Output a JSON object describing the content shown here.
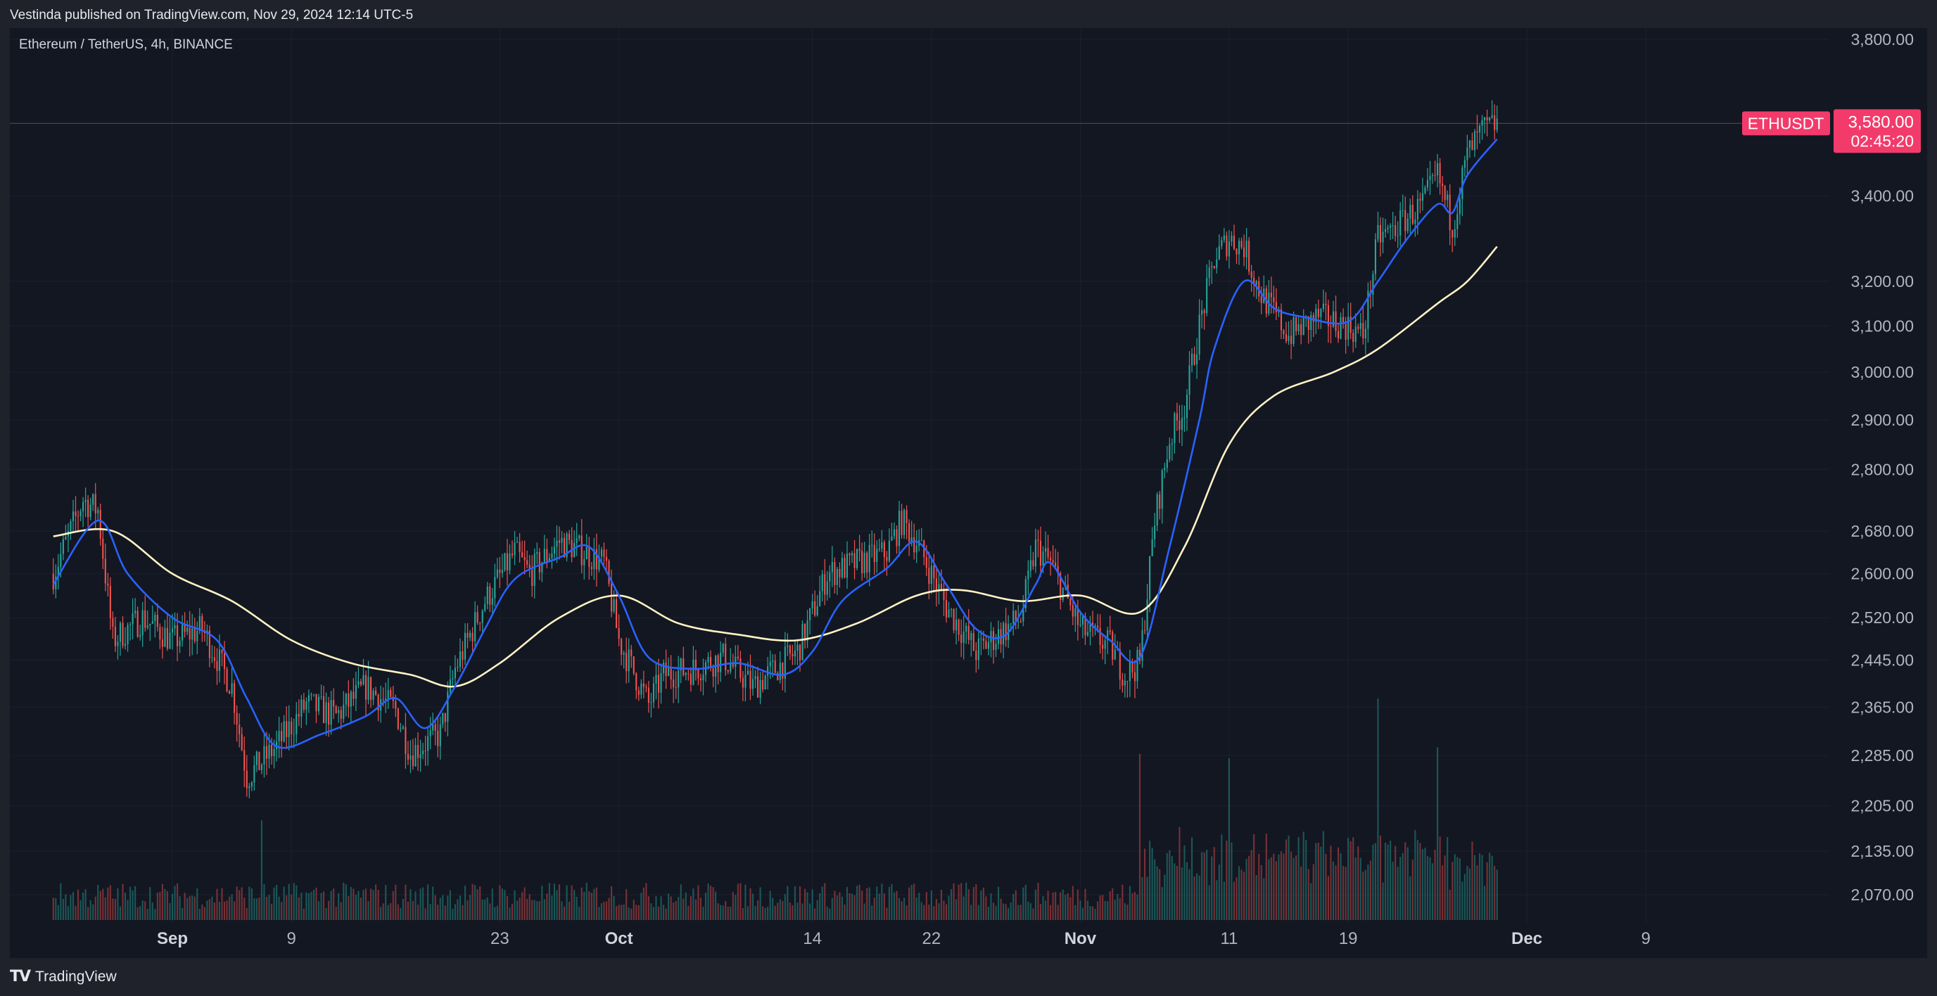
{
  "header": {
    "published_line": "Vestinda published on TradingView.com, Nov 29, 2024 12:14 UTC-5"
  },
  "symbol": {
    "description": "Ethereum / TetherUS, 4h, BINANCE"
  },
  "footer": {
    "brand": "TradingView",
    "logo_icon": "tradingview-logo-icon"
  },
  "colors": {
    "background": "#131722",
    "frame": "#1f222b",
    "up_candle": "#26a69a",
    "down_candle": "#ef5350",
    "ema_fast": "#2962ff",
    "ema_slow": "#fff3c4",
    "price_tag": "#f23b6b"
  },
  "chart_data": {
    "type": "candlestick",
    "symbol": "ETHUSDT",
    "timeframe": "4h",
    "exchange": "BINANCE",
    "x_range": [
      "2024-08-24",
      "2024-12-12"
    ],
    "last_candle_date": "2024-11-29",
    "y_scale": "log",
    "ylim": [
      2030,
      3850
    ],
    "y_ticks": [
      3800,
      3400,
      3200,
      3100,
      3000,
      2900,
      2800,
      2680,
      2600,
      2520,
      2445,
      2365,
      2285,
      2205,
      2135,
      2070
    ],
    "y_tick_labels": [
      "3,800.00",
      "3,400.00",
      "3,200.00",
      "3,100.00",
      "3,000.00",
      "2,900.00",
      "2,800.00",
      "2,680.00",
      "2,600.00",
      "2,520.00",
      "2,445.00",
      "2,365.00",
      "2,285.00",
      "2,205.00",
      "2,135.00",
      "2,070.00"
    ],
    "x_ticks": [
      {
        "date": "2024-09-01",
        "label": "Sep",
        "bold": true
      },
      {
        "date": "2024-09-09",
        "label": "9",
        "bold": false
      },
      {
        "date": "2024-09-23",
        "label": "23",
        "bold": false
      },
      {
        "date": "2024-10-01",
        "label": "Oct",
        "bold": true
      },
      {
        "date": "2024-10-14",
        "label": "14",
        "bold": false
      },
      {
        "date": "2024-10-22",
        "label": "22",
        "bold": false
      },
      {
        "date": "2024-11-01",
        "label": "Nov",
        "bold": true
      },
      {
        "date": "2024-11-11",
        "label": "11",
        "bold": false
      },
      {
        "date": "2024-11-19",
        "label": "19",
        "bold": false
      },
      {
        "date": "2024-12-01",
        "label": "Dec",
        "bold": true
      },
      {
        "date": "2024-12-09",
        "label": "9",
        "bold": false
      }
    ],
    "close_path": [
      [
        "2024-08-24",
        2600
      ],
      [
        "2024-08-26",
        2740
      ],
      [
        "2024-08-27",
        2720
      ],
      [
        "2024-08-28",
        2480
      ],
      [
        "2024-08-30",
        2520
      ],
      [
        "2024-09-01",
        2480
      ],
      [
        "2024-09-03",
        2500
      ],
      [
        "2024-09-05",
        2400
      ],
      [
        "2024-09-06",
        2250
      ],
      [
        "2024-09-08",
        2300
      ],
      [
        "2024-09-10",
        2370
      ],
      [
        "2024-09-12",
        2350
      ],
      [
        "2024-09-14",
        2400
      ],
      [
        "2024-09-16",
        2360
      ],
      [
        "2024-09-17",
        2290
      ],
      [
        "2024-09-19",
        2320
      ],
      [
        "2024-09-20",
        2430
      ],
      [
        "2024-09-22",
        2550
      ],
      [
        "2024-09-24",
        2640
      ],
      [
        "2024-09-25",
        2600
      ],
      [
        "2024-09-27",
        2660
      ],
      [
        "2024-09-28",
        2650
      ],
      [
        "2024-09-30",
        2620
      ],
      [
        "2024-10-01",
        2480
      ],
      [
        "2024-10-03",
        2370
      ],
      [
        "2024-10-04",
        2420
      ],
      [
        "2024-10-06",
        2430
      ],
      [
        "2024-10-08",
        2450
      ],
      [
        "2024-10-10",
        2400
      ],
      [
        "2024-10-11",
        2420
      ],
      [
        "2024-10-13",
        2460
      ],
      [
        "2024-10-15",
        2600
      ],
      [
        "2024-10-17",
        2620
      ],
      [
        "2024-10-19",
        2640
      ],
      [
        "2024-10-20",
        2700
      ],
      [
        "2024-10-21",
        2660
      ],
      [
        "2024-10-23",
        2540
      ],
      [
        "2024-10-25",
        2460
      ],
      [
        "2024-10-26",
        2480
      ],
      [
        "2024-10-28",
        2520
      ],
      [
        "2024-10-29",
        2650
      ],
      [
        "2024-10-30",
        2620
      ],
      [
        "2024-11-01",
        2500
      ],
      [
        "2024-11-03",
        2470
      ],
      [
        "2024-11-04",
        2420
      ],
      [
        "2024-11-05",
        2440
      ],
      [
        "2024-11-06",
        2700
      ],
      [
        "2024-11-07",
        2860
      ],
      [
        "2024-11-08",
        2930
      ],
      [
        "2024-11-09",
        3100
      ],
      [
        "2024-11-10",
        3250
      ],
      [
        "2024-11-11",
        3300
      ],
      [
        "2024-11-12",
        3280
      ],
      [
        "2024-11-13",
        3180
      ],
      [
        "2024-11-15",
        3080
      ],
      [
        "2024-11-17",
        3120
      ],
      [
        "2024-11-19",
        3100
      ],
      [
        "2024-11-20",
        3080
      ],
      [
        "2024-11-21",
        3300
      ],
      [
        "2024-11-22",
        3320
      ],
      [
        "2024-11-23",
        3350
      ],
      [
        "2024-11-24",
        3380
      ],
      [
        "2024-11-25",
        3450
      ],
      [
        "2024-11-26",
        3330
      ],
      [
        "2024-11-27",
        3500
      ],
      [
        "2024-11-28",
        3560
      ],
      [
        "2024-11-29",
        3580
      ]
    ],
    "ema_fast": {
      "color": "#2962ff",
      "points": [
        [
          "2024-08-24",
          2580
        ],
        [
          "2024-08-27",
          2700
        ],
        [
          "2024-08-29",
          2600
        ],
        [
          "2024-09-01",
          2520
        ],
        [
          "2024-09-04",
          2480
        ],
        [
          "2024-09-06",
          2380
        ],
        [
          "2024-09-08",
          2300
        ],
        [
          "2024-09-11",
          2320
        ],
        [
          "2024-09-14",
          2350
        ],
        [
          "2024-09-16",
          2380
        ],
        [
          "2024-09-18",
          2330
        ],
        [
          "2024-09-20",
          2400
        ],
        [
          "2024-09-22",
          2500
        ],
        [
          "2024-09-24",
          2590
        ],
        [
          "2024-09-27",
          2630
        ],
        [
          "2024-09-29",
          2650
        ],
        [
          "2024-10-01",
          2560
        ],
        [
          "2024-10-03",
          2450
        ],
        [
          "2024-10-06",
          2430
        ],
        [
          "2024-10-09",
          2440
        ],
        [
          "2024-10-12",
          2420
        ],
        [
          "2024-10-14",
          2460
        ],
        [
          "2024-10-16",
          2550
        ],
        [
          "2024-10-19",
          2610
        ],
        [
          "2024-10-21",
          2660
        ],
        [
          "2024-10-23",
          2580
        ],
        [
          "2024-10-25",
          2500
        ],
        [
          "2024-10-27",
          2490
        ],
        [
          "2024-10-29",
          2580
        ],
        [
          "2024-10-30",
          2620
        ],
        [
          "2024-11-01",
          2530
        ],
        [
          "2024-11-03",
          2480
        ],
        [
          "2024-11-05",
          2450
        ],
        [
          "2024-11-07",
          2650
        ],
        [
          "2024-11-09",
          2900
        ],
        [
          "2024-11-10",
          3050
        ],
        [
          "2024-11-12",
          3200
        ],
        [
          "2024-11-14",
          3140
        ],
        [
          "2024-11-16",
          3120
        ],
        [
          "2024-11-19",
          3110
        ],
        [
          "2024-11-21",
          3200
        ],
        [
          "2024-11-23",
          3300
        ],
        [
          "2024-11-25",
          3380
        ],
        [
          "2024-11-26",
          3360
        ],
        [
          "2024-11-27",
          3450
        ],
        [
          "2024-11-29",
          3540
        ]
      ]
    },
    "ema_slow": {
      "color": "#fff3c4",
      "points": [
        [
          "2024-08-24",
          2670
        ],
        [
          "2024-08-28",
          2680
        ],
        [
          "2024-09-01",
          2600
        ],
        [
          "2024-09-05",
          2550
        ],
        [
          "2024-09-09",
          2480
        ],
        [
          "2024-09-13",
          2440
        ],
        [
          "2024-09-17",
          2420
        ],
        [
          "2024-09-20",
          2400
        ],
        [
          "2024-09-23",
          2440
        ],
        [
          "2024-09-27",
          2520
        ],
        [
          "2024-10-01",
          2560
        ],
        [
          "2024-10-05",
          2510
        ],
        [
          "2024-10-09",
          2490
        ],
        [
          "2024-10-13",
          2480
        ],
        [
          "2024-10-17",
          2510
        ],
        [
          "2024-10-21",
          2560
        ],
        [
          "2024-10-24",
          2570
        ],
        [
          "2024-10-28",
          2550
        ],
        [
          "2024-11-01",
          2560
        ],
        [
          "2024-11-05",
          2530
        ],
        [
          "2024-11-08",
          2650
        ],
        [
          "2024-11-11",
          2850
        ],
        [
          "2024-11-14",
          2950
        ],
        [
          "2024-11-18",
          3000
        ],
        [
          "2024-11-21",
          3050
        ],
        [
          "2024-11-25",
          3150
        ],
        [
          "2024-11-27",
          3200
        ],
        [
          "2024-11-29",
          3280
        ]
      ]
    },
    "volume": {
      "unit": "relative",
      "spikes": [
        {
          "date": "2024-09-07",
          "value": 0.45
        },
        {
          "date": "2024-11-05",
          "value": 0.75
        },
        {
          "date": "2024-11-11",
          "value": 0.73
        },
        {
          "date": "2024-11-21",
          "value": 1.0
        },
        {
          "date": "2024-11-25",
          "value": 0.78
        }
      ]
    },
    "last_price": {
      "symbol_label": "ETHUSDT",
      "price_label": "3,580.00",
      "countdown": "02:45:20",
      "value": 3580
    }
  }
}
